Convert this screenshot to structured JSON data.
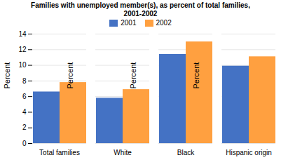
{
  "chart_data": {
    "type": "bar",
    "title": "Families with unemployed member(s), as percent of total families,\n2001-2002",
    "categories": [
      "Total families",
      "White",
      "Black",
      "Hispanic origin"
    ],
    "series": [
      {
        "name": "2001",
        "color": "#4472C4",
        "values": [
          6.6,
          5.8,
          11.4,
          9.9
        ]
      },
      {
        "name": "2002",
        "color": "#FFA040",
        "values": [
          7.8,
          6.9,
          13.0,
          11.1
        ]
      }
    ],
    "ylabel": "Percent",
    "ylim": [
      0,
      14
    ],
    "yticks": [
      0,
      2,
      4,
      6,
      8,
      10,
      12,
      14
    ],
    "grid": true,
    "legend": "top"
  }
}
